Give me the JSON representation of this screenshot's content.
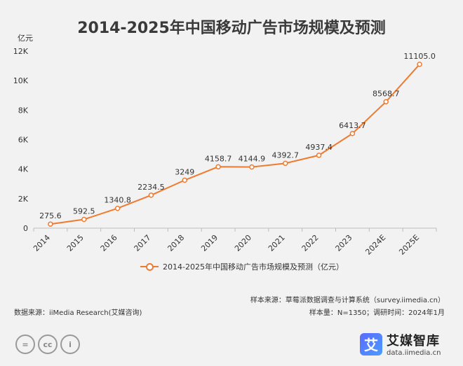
{
  "title": "2014-2025年中国移动广告市场规模及预测",
  "chart_data": {
    "type": "line",
    "title": "2014-2025年中国移动广告市场规模及预测",
    "unit_label": "亿元",
    "x": [
      "2014",
      "2015",
      "2016",
      "2017",
      "2018",
      "2019",
      "2020",
      "2021",
      "2022",
      "2023",
      "2024E",
      "2025E"
    ],
    "series": [
      {
        "name": "2014-2025年中国移动广告市场规模及预测（亿元）",
        "values": [
          275.6,
          592.5,
          1340.8,
          2234.5,
          3249,
          4158.7,
          4144.9,
          4392.7,
          4937.4,
          6413.7,
          8568.7,
          11105.0
        ]
      }
    ],
    "value_labels": [
      "275.6",
      "592.5",
      "1340.8",
      "2234.5",
      "3249",
      "4158.7",
      "4144.9",
      "4392.7",
      "4937.4",
      "6413.7",
      "8568.7",
      "11105.0"
    ],
    "ylim": [
      0,
      12000
    ],
    "yticks": [
      0,
      2000,
      4000,
      6000,
      8000,
      10000,
      12000
    ],
    "ytick_labels": [
      "0",
      "2K",
      "4K",
      "6K",
      "8K",
      "10K",
      "12K"
    ],
    "grid": false,
    "legend_position": "bottom",
    "line_color": "#f07a2e"
  },
  "footer": {
    "sample_source": "样本来源：草莓派数据调查与计算系统（survey.iimedia.cn）",
    "sample_size": "样本量：N=1350；调研时间：2024年1月",
    "data_source": "数据来源：iiMedia Research(艾媒咨询)"
  },
  "license_icons": [
    "equals-icon",
    "cc-icon",
    "person-icon"
  ],
  "license_glyphs": [
    "=",
    "cc",
    "i"
  ],
  "brand": {
    "logo_glyph": "艾",
    "name": "艾媒智库",
    "url": "data.iimedia.cn"
  }
}
